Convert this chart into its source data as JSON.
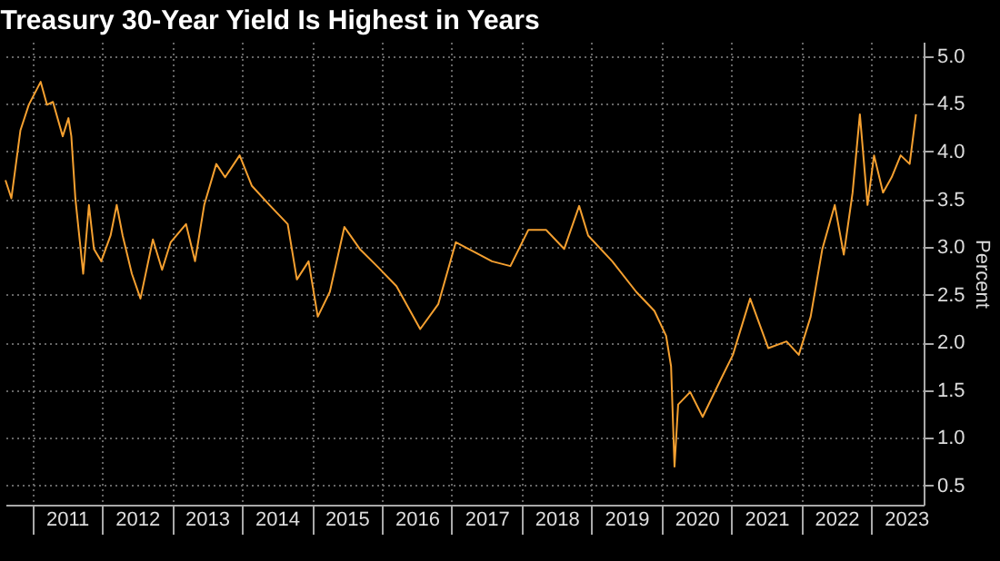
{
  "chart_data": {
    "type": "line",
    "title": "Treasury 30-Year Yield Is Highest in Years",
    "ylabel": "Percent",
    "x": [
      "2010-08-15",
      "2010-09-15",
      "2010-11-01",
      "2010-12-15",
      "2011-02-15",
      "2011-03-20",
      "2011-04-20",
      "2011-06-10",
      "2011-07-10",
      "2011-07-25",
      "2011-08-15",
      "2011-09-25",
      "2011-10-25",
      "2011-11-20",
      "2011-12-28",
      "2012-02-15",
      "2012-03-18",
      "2012-04-18",
      "2012-06-05",
      "2012-07-20",
      "2012-09-23",
      "2012-11-10",
      "2012-12-25",
      "2013-03-15",
      "2013-05-01",
      "2013-06-18",
      "2013-08-20",
      "2013-10-05",
      "2013-12-20",
      "2014-02-22",
      "2014-05-25",
      "2014-08-28",
      "2014-10-15",
      "2014-12-15",
      "2015-02-01",
      "2015-04-05",
      "2015-06-20",
      "2015-09-08",
      "2015-12-12",
      "2016-03-18",
      "2016-07-20",
      "2016-10-22",
      "2017-01-22",
      "2017-04-27",
      "2017-07-30",
      "2017-11-03",
      "2018-02-05",
      "2018-05-08",
      "2018-08-11",
      "2018-10-28",
      "2018-12-14",
      "2019-04-19",
      "2019-08-22",
      "2019-11-25",
      "2020-01-25",
      "2020-02-20",
      "2020-03-09",
      "2020-03-28",
      "2020-05-30",
      "2020-08-03",
      "2020-11-05",
      "2021-01-08",
      "2021-04-08",
      "2021-07-12",
      "2021-10-15",
      "2021-12-18",
      "2022-02-18",
      "2022-04-20",
      "2022-06-24",
      "2022-08-10",
      "2022-09-25",
      "2022-11-02",
      "2022-12-12",
      "2023-01-15",
      "2023-03-03",
      "2023-04-17",
      "2023-06-03",
      "2023-07-20",
      "2023-08-22"
    ],
    "series": [
      {
        "color": "#f5a030",
        "values": [
          3.7,
          3.51,
          4.22,
          4.49,
          4.73,
          4.49,
          4.52,
          4.16,
          4.35,
          4.16,
          3.51,
          2.72,
          3.44,
          2.98,
          2.85,
          3.12,
          3.44,
          3.12,
          2.72,
          2.46,
          3.08,
          2.76,
          3.05,
          3.24,
          2.85,
          3.44,
          3.87,
          3.73,
          3.96,
          3.64,
          3.44,
          3.24,
          2.66,
          2.85,
          2.27,
          2.53,
          3.21,
          2.98,
          2.79,
          2.59,
          2.14,
          2.4,
          3.05,
          2.95,
          2.85,
          2.8,
          3.18,
          3.18,
          2.98,
          3.43,
          3.12,
          2.85,
          2.53,
          2.33,
          2.07,
          1.75,
          0.7,
          1.35,
          1.48,
          1.22,
          1.61,
          1.87,
          2.46,
          1.94,
          2.01,
          1.87,
          2.27,
          2.98,
          3.44,
          2.92,
          3.57,
          4.39,
          3.44,
          3.96,
          3.57,
          3.73,
          3.96,
          3.87,
          4.39
        ]
      }
    ],
    "xlim": [
      "2010-08-15",
      "2023-10-01"
    ],
    "xticks": [
      {
        "value": "2011-01-01",
        "label": null
      },
      {
        "value": "2012-01-01",
        "label": null
      },
      {
        "value": "2013-01-01",
        "label": null
      },
      {
        "value": "2014-01-01",
        "label": null
      },
      {
        "value": "2015-01-01",
        "label": null
      },
      {
        "value": "2016-01-01",
        "label": null
      },
      {
        "value": "2017-01-01",
        "label": null
      },
      {
        "value": "2018-01-01",
        "label": null
      },
      {
        "value": "2019-01-01",
        "label": null
      },
      {
        "value": "2020-01-01",
        "label": null
      },
      {
        "value": "2021-01-01",
        "label": null
      },
      {
        "value": "2022-01-01",
        "label": null
      },
      {
        "value": "2023-01-01",
        "label": null
      },
      {
        "value": "2011-07-02",
        "label": "2011"
      },
      {
        "value": "2012-07-02",
        "label": "2012"
      },
      {
        "value": "2013-07-02",
        "label": "2013"
      },
      {
        "value": "2014-07-02",
        "label": "2014"
      },
      {
        "value": "2015-07-02",
        "label": "2015"
      },
      {
        "value": "2016-07-02",
        "label": "2016"
      },
      {
        "value": "2017-07-02",
        "label": "2017"
      },
      {
        "value": "2018-07-02",
        "label": "2018"
      },
      {
        "value": "2019-07-02",
        "label": "2019"
      },
      {
        "value": "2020-07-02",
        "label": "2020"
      },
      {
        "value": "2021-07-02",
        "label": "2021"
      },
      {
        "value": "2022-07-02",
        "label": "2022"
      },
      {
        "value": "2023-07-02",
        "label": "2023"
      }
    ],
    "ylim": [
      0.3,
      5.15
    ],
    "yticks": [
      {
        "value": 0.5,
        "label": "0.5"
      },
      {
        "value": 1,
        "label": "1.0"
      },
      {
        "value": 1.5,
        "label": "1.5"
      },
      {
        "value": 2,
        "label": "2.0"
      },
      {
        "value": 2.5,
        "label": "2.5"
      },
      {
        "value": 3,
        "label": "3.0"
      },
      {
        "value": 3.5,
        "label": "3.5"
      },
      {
        "value": 4,
        "label": "4.0"
      },
      {
        "value": 4.5,
        "label": "4.5"
      },
      {
        "value": 5,
        "label": "5.0"
      }
    ],
    "grid": true,
    "line_style": "solid",
    "marker": "none"
  }
}
